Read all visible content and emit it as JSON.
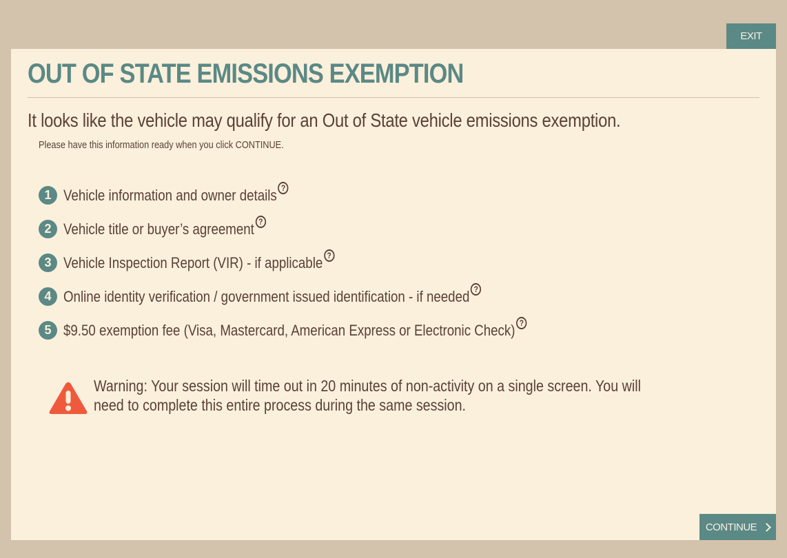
{
  "header": {
    "exit_label": "EXIT"
  },
  "main": {
    "title": "OUT OF STATE EMISSIONS EXEMPTION",
    "headline": "It looks like the vehicle may qualify for an Out of State vehicle emissions exemption.",
    "subtext": "Please have this information ready when you click CONTINUE.",
    "requirements": [
      {
        "number": "1",
        "label": "Vehicle information and owner details"
      },
      {
        "number": "2",
        "label": "Vehicle title or buyer’s agreement"
      },
      {
        "number": "3",
        "label": "Vehicle Inspection Report (VIR) - if applicable"
      },
      {
        "number": "4",
        "label": "Online identity verification / government issued identification - if needed"
      },
      {
        "number": "5",
        "label": "$9.50 exemption fee (Visa, Mastercard, American Express or Electronic Check)"
      }
    ],
    "help_icon_glyph": "?",
    "warning": "Warning: Your session will time out in 20 minutes of non-activity on a single screen. You will need to complete this entire process during the same session."
  },
  "footer": {
    "continue_label": "CONTINUE"
  },
  "colors": {
    "background": "#d3c2ac",
    "panel": "#fbf0dc",
    "accent": "#5b8985",
    "text": "#5a4036",
    "warning": "#f05a3c"
  },
  "icons": {
    "help": "question-circle-icon",
    "warning": "warning-triangle-icon",
    "continue": "chevron-right-icon"
  }
}
